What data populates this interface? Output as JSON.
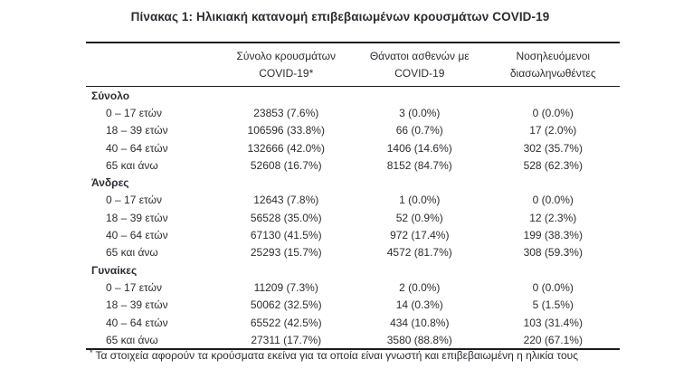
{
  "title": "Πίνακας 1: Ηλικιακή κατανομή επιβεβαιωμένων κρουσμάτων COVID-19",
  "table": {
    "headers": {
      "cases_line1": "Σύνολο κρουσμάτων",
      "cases_line2": "COVID-19*",
      "deaths_line1": "Θάνατοι ασθενών με",
      "deaths_line2": "COVID-19",
      "intubated_line1": "Νοσηλευόμενοι",
      "intubated_line2": "διασωληνωθέντες"
    },
    "sections": [
      {
        "label": "Σύνολο",
        "rows": [
          {
            "label": "0 – 17 ετών",
            "cases": "23853 (7.6%)",
            "deaths": "3 (0.0%)",
            "intubated": "0 (0.0%)"
          },
          {
            "label": "18 – 39 ετών",
            "cases": "106596 (33.8%)",
            "deaths": "66 (0.7%)",
            "intubated": "17 (2.0%)"
          },
          {
            "label": "40 – 64 ετών",
            "cases": "132666 (42.0%)",
            "deaths": "1406 (14.6%)",
            "intubated": "302 (35.7%)"
          },
          {
            "label": "65 και άνω",
            "cases": "52608 (16.7%)",
            "deaths": "8152 (84.7%)",
            "intubated": "528 (62.3%)"
          }
        ]
      },
      {
        "label": "Άνδρες",
        "rows": [
          {
            "label": "0 – 17 ετών",
            "cases": "12643 (7.8%)",
            "deaths": "1 (0.0%)",
            "intubated": "0 (0.0%)"
          },
          {
            "label": "18 – 39 ετών",
            "cases": "56528 (35.0%)",
            "deaths": "52 (0.9%)",
            "intubated": "12 (2.3%)"
          },
          {
            "label": "40 – 64 ετών",
            "cases": "67130 (41.5%)",
            "deaths": "972 (17.4%)",
            "intubated": "199 (38.3%)"
          },
          {
            "label": "65 και άνω",
            "cases": "25293 (15.7%)",
            "deaths": "4572 (81.7%)",
            "intubated": "308 (59.3%)"
          }
        ]
      },
      {
        "label": "Γυναίκες",
        "rows": [
          {
            "label": "0 – 17 ετών",
            "cases": "11209 (7.3%)",
            "deaths": "2 (0.0%)",
            "intubated": "0 (0.0%)"
          },
          {
            "label": "18 – 39 ετών",
            "cases": "50062 (32.5%)",
            "deaths": "14 (0.3%)",
            "intubated": "5 (1.5%)"
          },
          {
            "label": "40 – 64 ετών",
            "cases": "65522 (42.5%)",
            "deaths": "434 (10.8%)",
            "intubated": "103 (31.4%)"
          },
          {
            "label": "65 και άνω",
            "cases": "27311 (17.7%)",
            "deaths": "3580 (88.8%)",
            "intubated": "220 (67.1%)"
          }
        ]
      }
    ]
  },
  "footnote": {
    "marker": "*",
    "text": "Τα στοιχεία αφορούν τα κρούσματα εκείνα για τα οποία είναι γνωστή και επιβεβαιωμένη η ηλικία τους"
  }
}
